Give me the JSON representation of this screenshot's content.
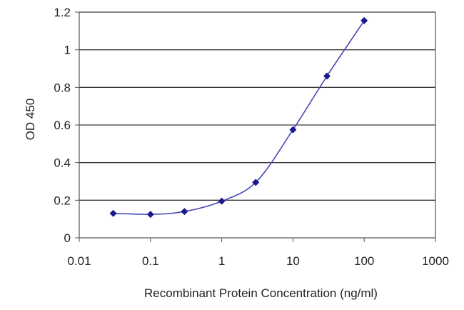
{
  "chart_data": {
    "type": "scatter",
    "title": "",
    "xlabel": "Recombinant Protein Concentration (ng/ml)",
    "ylabel": "OD 450",
    "x_scale": "log",
    "xlim": [
      0.01,
      1000
    ],
    "ylim": [
      0,
      1.2
    ],
    "x_ticks": [
      "0.01",
      "0.1",
      "1",
      "10",
      "100",
      "1000"
    ],
    "y_ticks": [
      "0",
      "0.2",
      "0.4",
      "0.6",
      "0.8",
      "1",
      "1.2"
    ],
    "grid": "horizontal",
    "legend": "none",
    "series": [
      {
        "x": [
          0.03,
          0.1,
          0.3,
          1,
          3,
          10,
          30,
          100
        ],
        "y": [
          0.13,
          0.125,
          0.14,
          0.195,
          0.295,
          0.575,
          0.86,
          1.155
        ],
        "marker": "diamond",
        "fitted_curve": true
      }
    ],
    "colors": {
      "series": "#1a1a8c",
      "curve": "#4a4ab8",
      "grid": "#3a3a3a",
      "frame": "#555555"
    }
  }
}
